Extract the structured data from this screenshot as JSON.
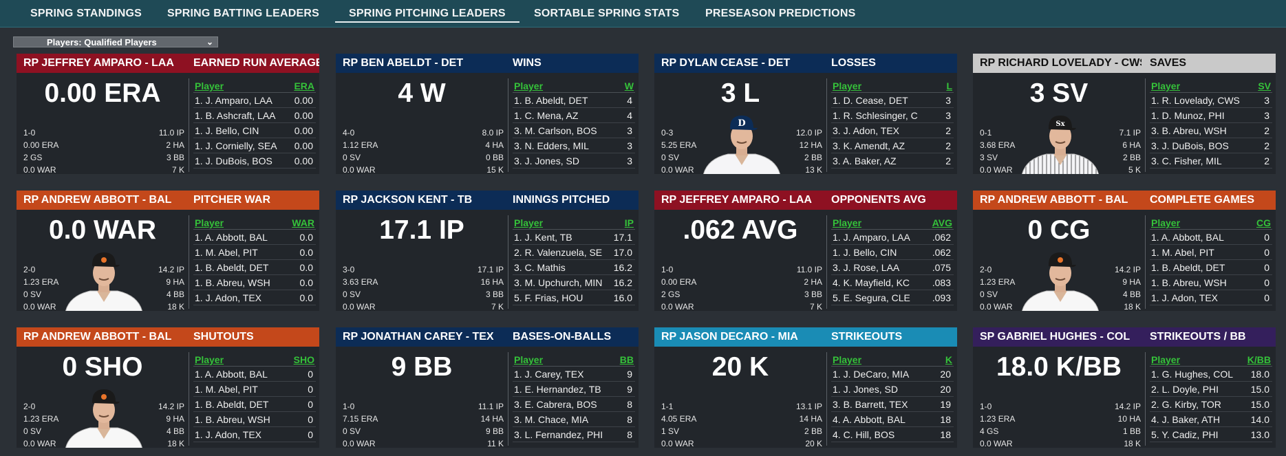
{
  "tabs": [
    {
      "label": "SPRING STANDINGS"
    },
    {
      "label": "SPRING BATTING LEADERS"
    },
    {
      "label": "SPRING PITCHING LEADERS",
      "active": true
    },
    {
      "label": "SORTABLE SPRING STATS"
    },
    {
      "label": "PRESEASON PREDICTIONS"
    }
  ],
  "filter": {
    "label": "Players: Qualified Players"
  },
  "colors": {
    "red": "#8e1122",
    "navy": "#0c2c56",
    "orange": "#c4481b",
    "white": "#c9c9c9",
    "blue": "#1a8cb5",
    "purple": "#341f5c",
    "green_link": "#35c23a"
  },
  "panels": [
    {
      "player": "RP JEFFREY AMPARO - LAA",
      "stat_title": "EARNED RUN AVERAGE",
      "big": "0.00 ERA",
      "theme": "red",
      "photo": "none",
      "left_stats": [
        "1-0",
        "0.00 ERA",
        "2 GS",
        "0.0 WAR"
      ],
      "right_stats": [
        "11.0 IP",
        "2 HA",
        "3 BB",
        "7 K"
      ],
      "col_player": "Player",
      "col_stat": "ERA",
      "rows": [
        [
          "1. J. Amparo, LAA",
          "0.00"
        ],
        [
          "1. B. Ashcraft, LAA",
          "0.00"
        ],
        [
          "1. J. Bello, CIN",
          "0.00"
        ],
        [
          "1. J. Cornielly, SEA",
          "0.00"
        ],
        [
          "1. J. DuBois, BOS",
          "0.00"
        ]
      ]
    },
    {
      "player": "RP BEN ABELDT - DET",
      "stat_title": "WINS",
      "big": "4 W",
      "theme": "navy",
      "photo": "none",
      "left_stats": [
        "4-0",
        "1.12 ERA",
        "0 SV",
        "0.0 WAR"
      ],
      "right_stats": [
        "8.0 IP",
        "4 HA",
        "0 BB",
        "15 K"
      ],
      "col_player": "Player",
      "col_stat": "W",
      "rows": [
        [
          "1. B. Abeldt, DET",
          "4"
        ],
        [
          "1. C. Mena, AZ",
          "4"
        ],
        [
          "3. M. Carlson, BOS",
          "3"
        ],
        [
          "3. N. Edders, MIL",
          "3"
        ],
        [
          "3. J. Jones, SD",
          "3"
        ]
      ]
    },
    {
      "player": "RP DYLAN CEASE - DET",
      "stat_title": "LOSSES",
      "big": "3 L",
      "theme": "navy",
      "photo": "det",
      "left_stats": [
        "0-3",
        "5.25 ERA",
        "0 SV",
        "0.0 WAR"
      ],
      "right_stats": [
        "12.0 IP",
        "12 HA",
        "2 BB",
        "13 K"
      ],
      "col_player": "Player",
      "col_stat": "L",
      "rows": [
        [
          "1. D. Cease, DET",
          "3"
        ],
        [
          "1. R. Schlesinger, C",
          "3"
        ],
        [
          "3. J. Adon, TEX",
          "2"
        ],
        [
          "3. K. Amendt, AZ",
          "2"
        ],
        [
          "3. A. Baker, AZ",
          "2"
        ]
      ]
    },
    {
      "player": "RP RICHARD LOVELADY - CWS",
      "stat_title": "SAVES",
      "big": "3 SV",
      "theme": "white",
      "photo": "cws",
      "left_stats": [
        "0-1",
        "3.68 ERA",
        "3 SV",
        "0.0 WAR"
      ],
      "right_stats": [
        "7.1 IP",
        "6 HA",
        "2 BB",
        "5 K"
      ],
      "col_player": "Player",
      "col_stat": "SV",
      "rows": [
        [
          "1. R. Lovelady, CWS",
          "3"
        ],
        [
          "1. D. Munoz, PHI",
          "3"
        ],
        [
          "3. B. Abreu, WSH",
          "2"
        ],
        [
          "3. J. DuBois, BOS",
          "2"
        ],
        [
          "3. C. Fisher, MIL",
          "2"
        ]
      ]
    },
    {
      "player": "RP ANDREW ABBOTT - BAL",
      "stat_title": "PITCHER WAR",
      "big": "0.0 WAR",
      "theme": "orange",
      "photo": "bal",
      "left_stats": [
        "2-0",
        "1.23 ERA",
        "0 SV",
        "0.0 WAR"
      ],
      "right_stats": [
        "14.2 IP",
        "9 HA",
        "4 BB",
        "18 K"
      ],
      "col_player": "Player",
      "col_stat": "WAR",
      "rows": [
        [
          "1. A. Abbott, BAL",
          "0.0"
        ],
        [
          "1. M. Abel, PIT",
          "0.0"
        ],
        [
          "1. B. Abeldt, DET",
          "0.0"
        ],
        [
          "1. B. Abreu, WSH",
          "0.0"
        ],
        [
          "1. J. Adon, TEX",
          "0.0"
        ]
      ]
    },
    {
      "player": "RP JACKSON KENT - TB",
      "stat_title": "INNINGS PITCHED",
      "big": "17.1 IP",
      "theme": "navy",
      "photo": "none",
      "left_stats": [
        "3-0",
        "3.63 ERA",
        "0 SV",
        "0.0 WAR"
      ],
      "right_stats": [
        "17.1 IP",
        "16 HA",
        "3 BB",
        "7 K"
      ],
      "col_player": "Player",
      "col_stat": "IP",
      "rows": [
        [
          "1. J. Kent, TB",
          "17.1"
        ],
        [
          "2. R. Valenzuela, SE",
          "17.0"
        ],
        [
          "3. C. Mathis",
          "16.2"
        ],
        [
          "3. M. Upchurch, MIN",
          "16.2"
        ],
        [
          "5. F. Frias, HOU",
          "16.0"
        ]
      ]
    },
    {
      "player": "RP JEFFREY AMPARO - LAA",
      "stat_title": "OPPONENTS AVG",
      "big": ".062 AVG",
      "theme": "red",
      "photo": "none",
      "left_stats": [
        "1-0",
        "0.00 ERA",
        "2 GS",
        "0.0 WAR"
      ],
      "right_stats": [
        "11.0 IP",
        "2 HA",
        "3 BB",
        "7 K"
      ],
      "col_player": "Player",
      "col_stat": "AVG",
      "rows": [
        [
          "1. J. Amparo, LAA",
          ".062"
        ],
        [
          "1. J. Bello, CIN",
          ".062"
        ],
        [
          "3. J. Rose, LAA",
          ".075"
        ],
        [
          "4. K. Mayfield, KC",
          ".083"
        ],
        [
          "5. E. Segura, CLE",
          ".093"
        ]
      ]
    },
    {
      "player": "RP ANDREW ABBOTT - BAL",
      "stat_title": "COMPLETE GAMES",
      "big": "0 CG",
      "theme": "orange",
      "photo": "bal",
      "left_stats": [
        "2-0",
        "1.23 ERA",
        "0 SV",
        "0.0 WAR"
      ],
      "right_stats": [
        "14.2 IP",
        "9 HA",
        "4 BB",
        "18 K"
      ],
      "col_player": "Player",
      "col_stat": "CG",
      "rows": [
        [
          "1. A. Abbott, BAL",
          "0"
        ],
        [
          "1. M. Abel, PIT",
          "0"
        ],
        [
          "1. B. Abeldt, DET",
          "0"
        ],
        [
          "1. B. Abreu, WSH",
          "0"
        ],
        [
          "1. J. Adon, TEX",
          "0"
        ]
      ]
    },
    {
      "player": "RP ANDREW ABBOTT - BAL",
      "stat_title": "SHUTOUTS",
      "big": "0 SHO",
      "theme": "orange",
      "photo": "bal",
      "left_stats": [
        "2-0",
        "1.23 ERA",
        "0 SV",
        "0.0 WAR"
      ],
      "right_stats": [
        "14.2 IP",
        "9 HA",
        "4 BB",
        "18 K"
      ],
      "col_player": "Player",
      "col_stat": "SHO",
      "rows": [
        [
          "1. A. Abbott, BAL",
          "0"
        ],
        [
          "1. M. Abel, PIT",
          "0"
        ],
        [
          "1. B. Abeldt, DET",
          "0"
        ],
        [
          "1. B. Abreu, WSH",
          "0"
        ],
        [
          "1. J. Adon, TEX",
          "0"
        ]
      ]
    },
    {
      "player": "RP JONATHAN CAREY - TEX",
      "stat_title": "BASES-ON-BALLS",
      "big": "9 BB",
      "theme": "navy",
      "photo": "none",
      "left_stats": [
        "1-0",
        "7.15 ERA",
        "0 SV",
        "0.0 WAR"
      ],
      "right_stats": [
        "11.1 IP",
        "14 HA",
        "9 BB",
        "11 K"
      ],
      "col_player": "Player",
      "col_stat": "BB",
      "rows": [
        [
          "1. J. Carey, TEX",
          "9"
        ],
        [
          "1. E. Hernandez, TB",
          "9"
        ],
        [
          "3. E. Cabrera, BOS",
          "8"
        ],
        [
          "3. M. Chace, MIA",
          "8"
        ],
        [
          "3. L. Fernandez, PHI",
          "8"
        ]
      ]
    },
    {
      "player": "RP JASON DECARO - MIA",
      "stat_title": "STRIKEOUTS",
      "big": "20 K",
      "theme": "blue",
      "photo": "none",
      "left_stats": [
        "1-1",
        "4.05 ERA",
        "1 SV",
        "0.0 WAR"
      ],
      "right_stats": [
        "13.1 IP",
        "14 HA",
        "2 BB",
        "20 K"
      ],
      "col_player": "Player",
      "col_stat": "K",
      "rows": [
        [
          "1. J. DeCaro, MIA",
          "20"
        ],
        [
          "1. J. Jones, SD",
          "20"
        ],
        [
          "3. B. Barrett, TEX",
          "19"
        ],
        [
          "4. A. Abbott, BAL",
          "18"
        ],
        [
          "4. C. Hill, BOS",
          "18"
        ]
      ]
    },
    {
      "player": "SP GABRIEL HUGHES - COL",
      "stat_title": "STRIKEOUTS / BB",
      "big": "18.0 K/BB",
      "theme": "purple",
      "photo": "none",
      "left_stats": [
        "1-0",
        "1.23 ERA",
        "4 GS",
        "0.0 WAR"
      ],
      "right_stats": [
        "14.2 IP",
        "10 HA",
        "1 BB",
        "18 K"
      ],
      "col_player": "Player",
      "col_stat": "K/BB",
      "rows": [
        [
          "1. G. Hughes, COL",
          "18.0"
        ],
        [
          "2. L. Doyle, PHI",
          "15.0"
        ],
        [
          "2. G. Kirby, TOR",
          "15.0"
        ],
        [
          "4. J. Baker, ATH",
          "14.0"
        ],
        [
          "5. Y. Cadiz, PHI",
          "13.0"
        ]
      ]
    }
  ]
}
